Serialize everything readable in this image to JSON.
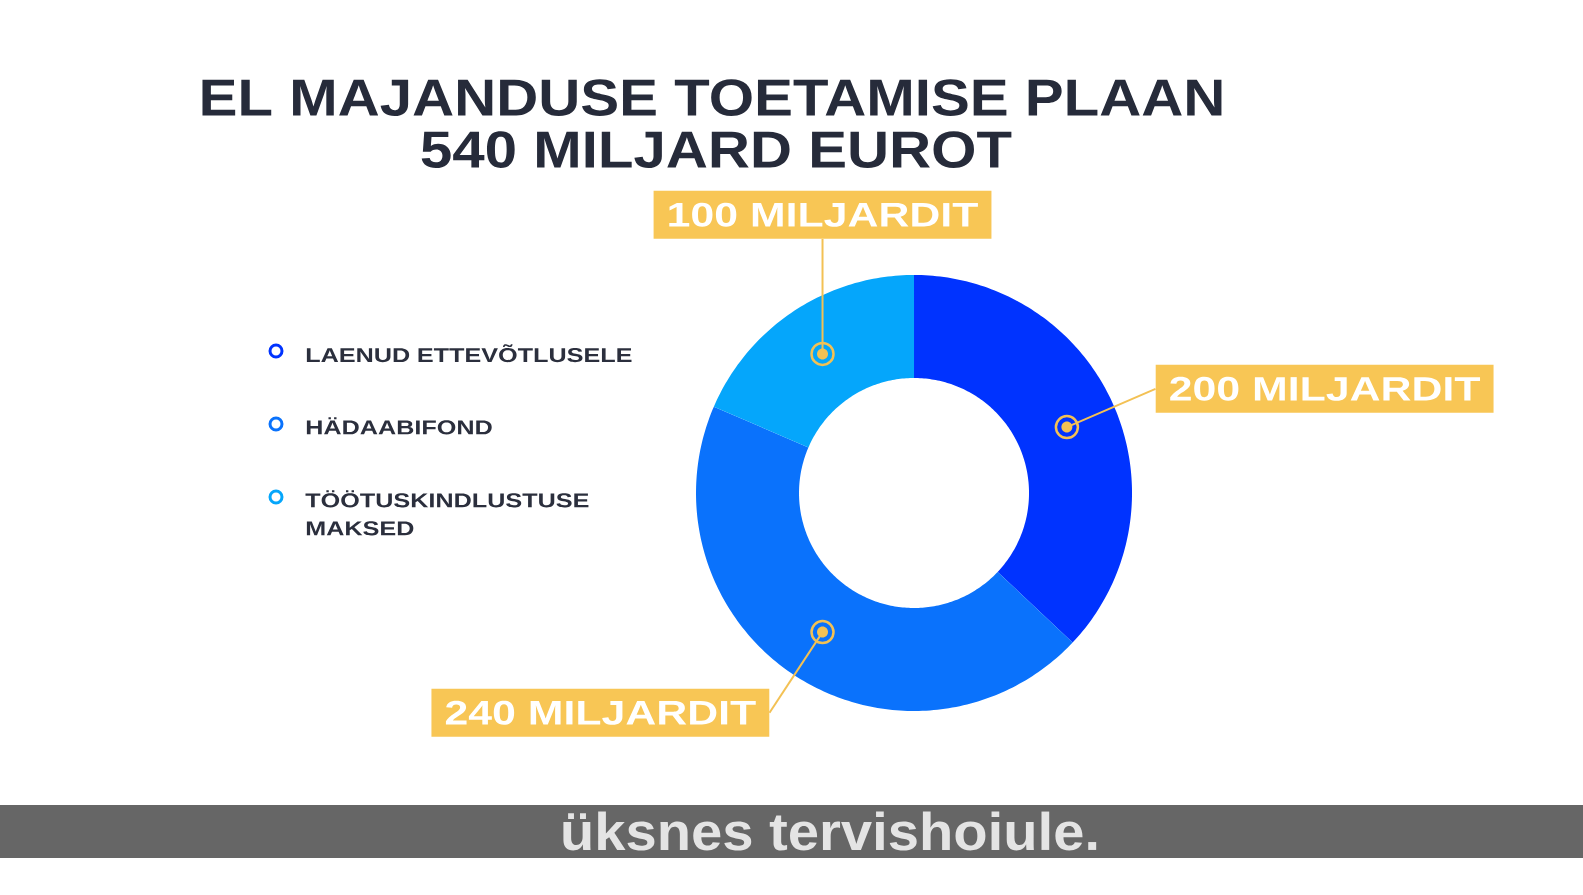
{
  "chart_data": {
    "type": "donut",
    "title": "EL MAJANDUSE TOETAMISE PLAAN",
    "subtitle": "540 MILJARD EUROT",
    "categories": [
      "LAENUD ETTEVÕTLUSELE",
      "HÄDAABIFOND",
      "TÖÖTUSKINDLUSTUSE MAKSED"
    ],
    "values": [
      200,
      240,
      100
    ],
    "colors": [
      "#0033ff",
      "#0a72fc",
      "#05a6fb"
    ],
    "value_labels": [
      "200 MILJARDIT",
      "240 MILJARDIT",
      "100 MILJARDIT"
    ],
    "legend": "left",
    "annotations": [
      "üksnes tervishoiule."
    ]
  }
}
